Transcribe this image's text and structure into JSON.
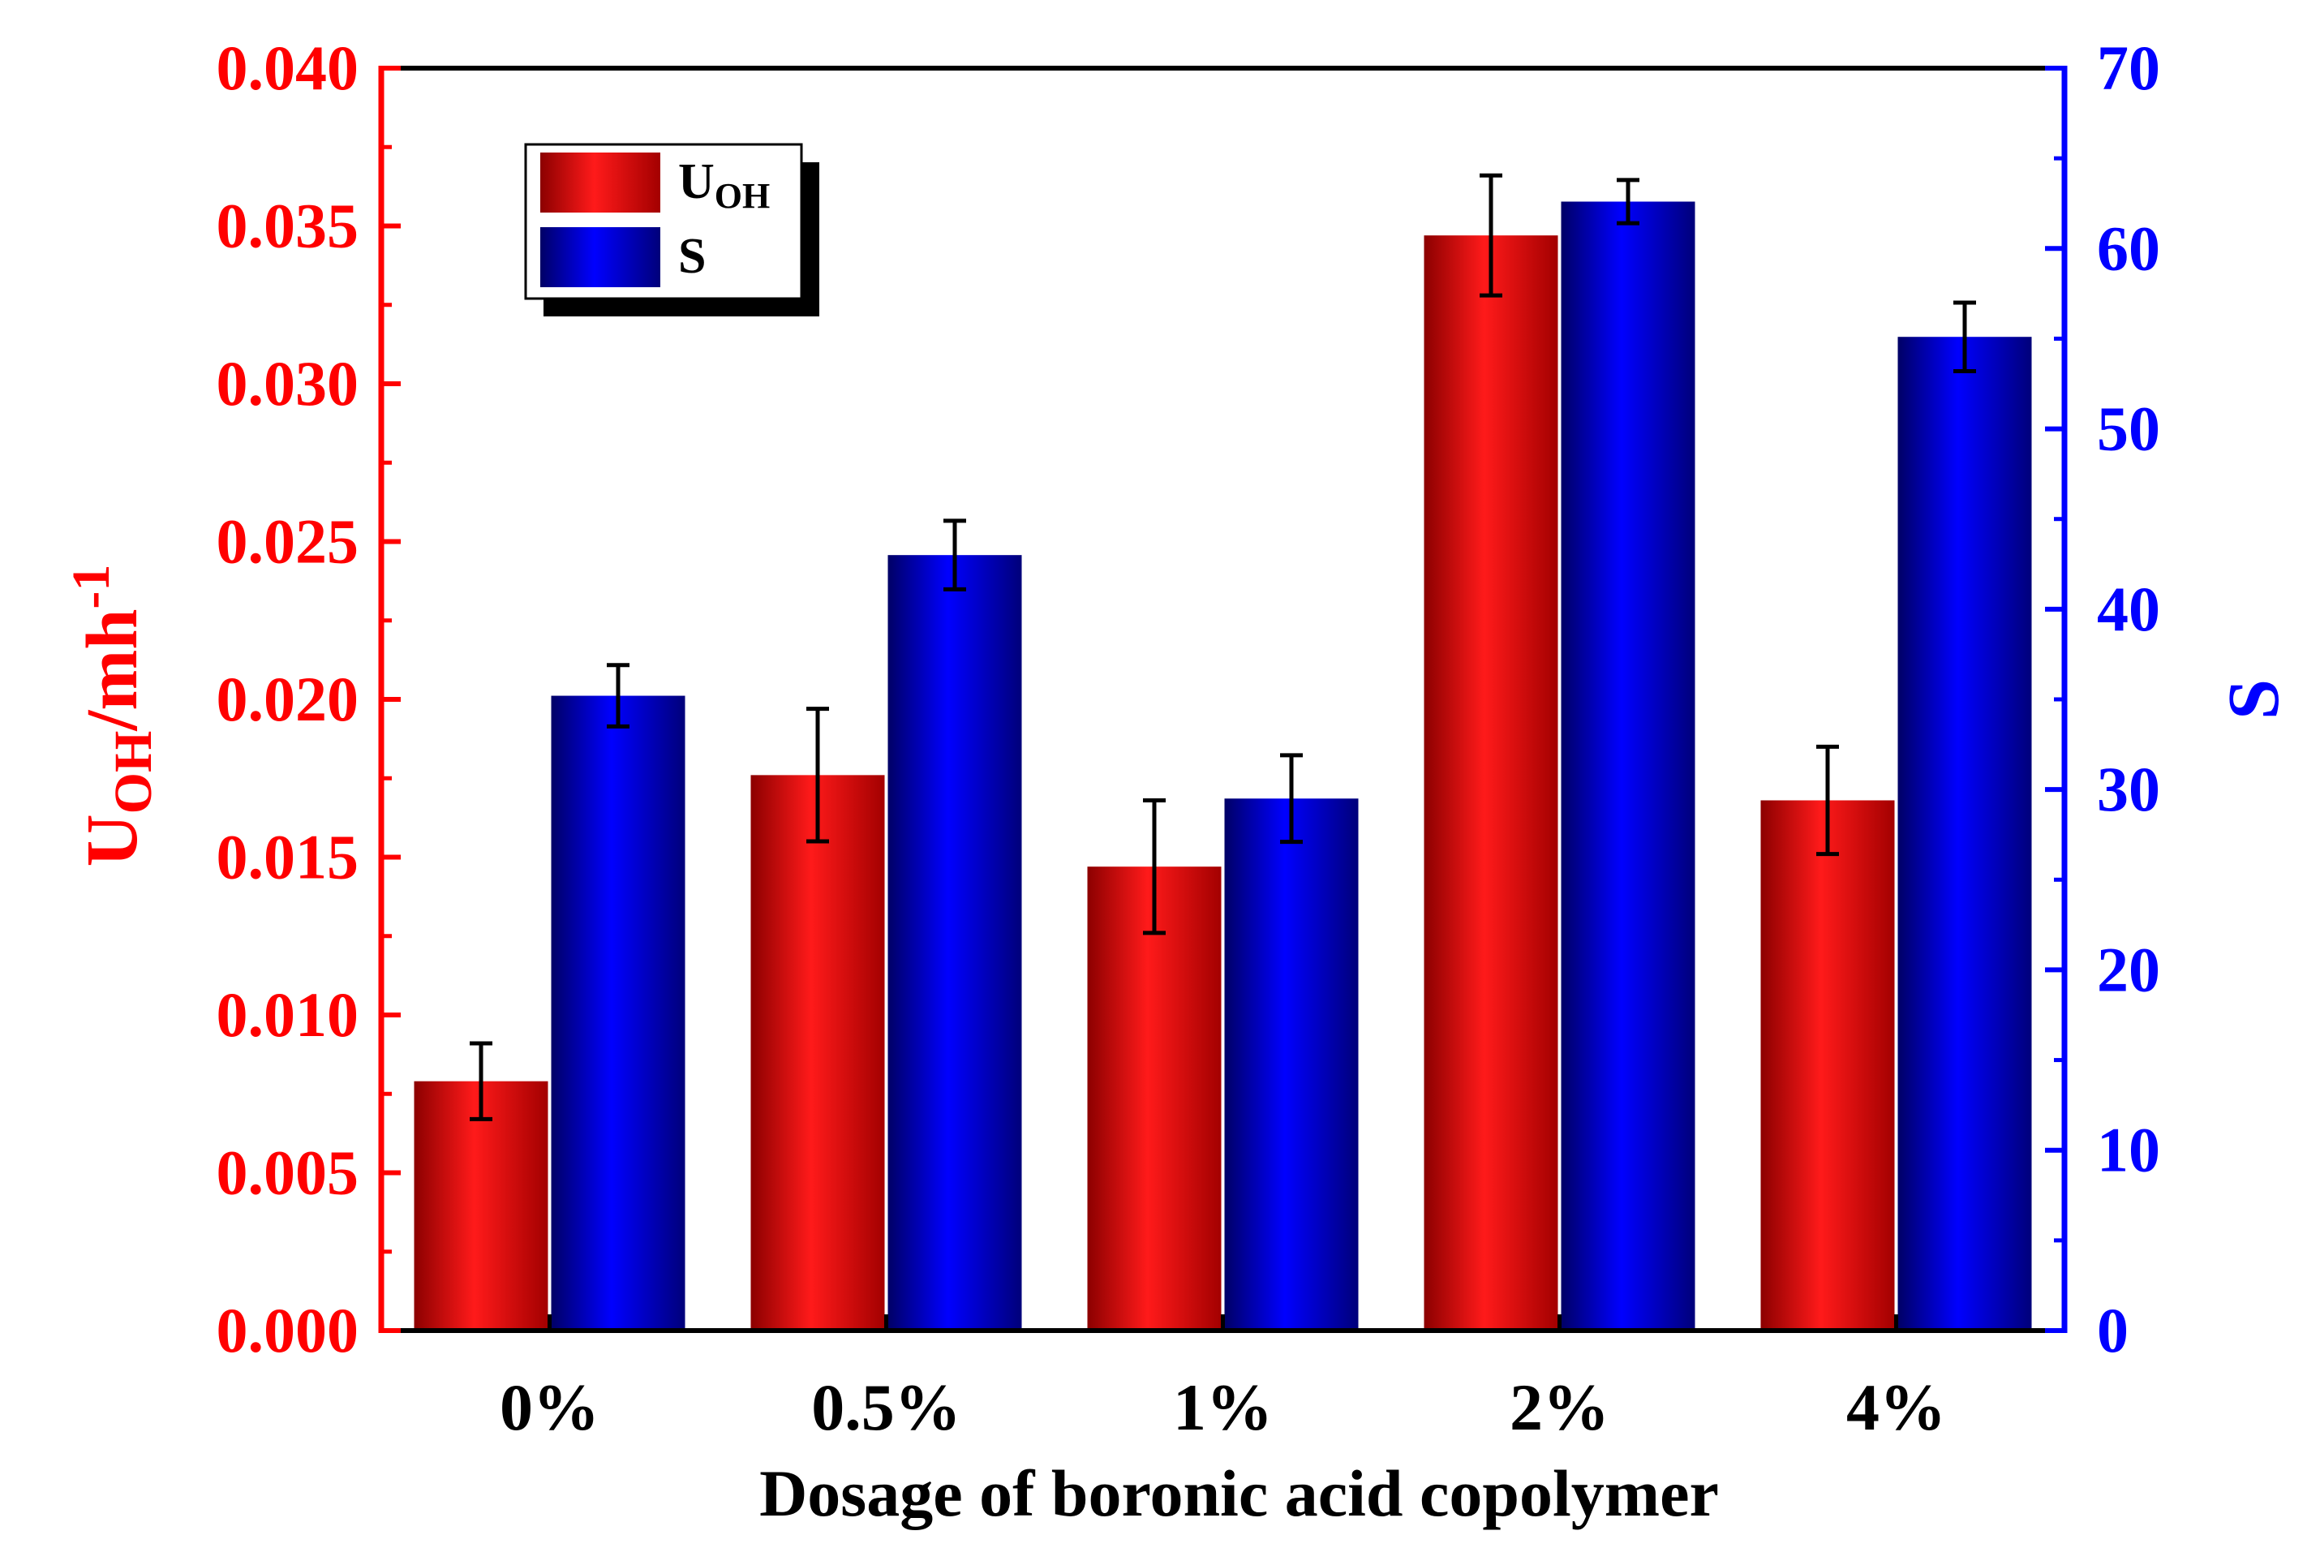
{
  "chart_data": {
    "type": "bar",
    "title": "",
    "xlabel": "Dosage of boronic acid copolymer",
    "categories": [
      "0%",
      "0.5%",
      "1%",
      "2%",
      "4%"
    ],
    "left_axis": {
      "label_main": "U",
      "label_sub": "OH",
      "label_rest": "/mh",
      "label_sup": "-1",
      "ylim": [
        0,
        0.04
      ],
      "ticks": [
        "0.000",
        "0.005",
        "0.010",
        "0.015",
        "0.020",
        "0.025",
        "0.030",
        "0.035",
        "0.040"
      ],
      "color": "#ff0000"
    },
    "right_axis": {
      "label": "S",
      "ylim": [
        0,
        70
      ],
      "ticks": [
        "0",
        "10",
        "20",
        "30",
        "40",
        "50",
        "60",
        "70"
      ],
      "color": "#0000ff"
    },
    "series": [
      {
        "name": "UOH",
        "legend_main": "U",
        "legend_sub": "OH",
        "axis": "left",
        "values": [
          0.0079,
          0.0176,
          0.0147,
          0.0347,
          0.0168
        ],
        "errors": [
          0.0012,
          0.0021,
          0.0021,
          0.0019,
          0.0017
        ],
        "color": "#e60000"
      },
      {
        "name": "S",
        "legend_main": "S",
        "legend_sub": "",
        "axis": "right",
        "values": [
          35.2,
          43.0,
          29.5,
          62.6,
          55.1
        ],
        "errors": [
          1.7,
          1.9,
          2.4,
          1.2,
          1.9
        ],
        "color": "#0000e6"
      }
    ],
    "legend_position": "top-left",
    "grid": false
  }
}
